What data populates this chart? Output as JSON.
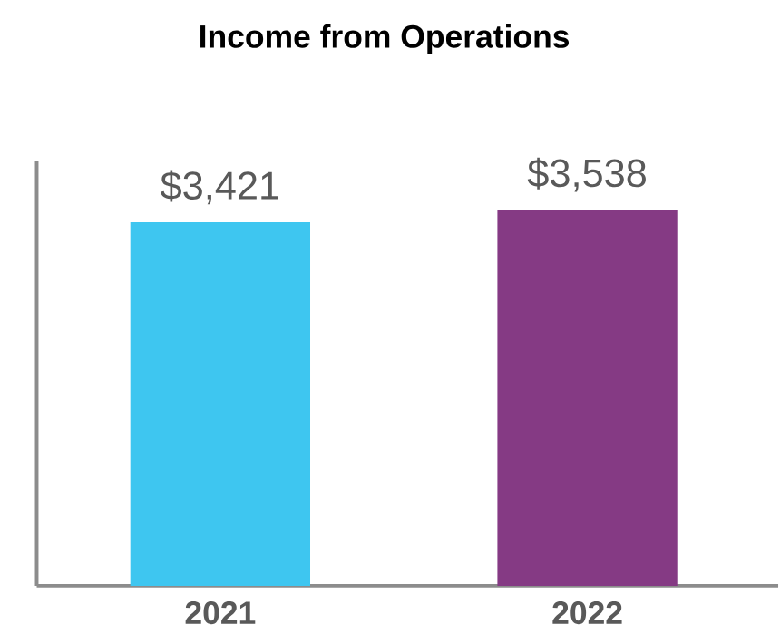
{
  "chart_data": {
    "type": "bar",
    "title": "Income from Operations",
    "categories": [
      "2021",
      "2022"
    ],
    "values": [
      3421,
      3538
    ],
    "colors": [
      "#3ec6f0",
      "#853a84"
    ],
    "value_labels": [
      "$3,421",
      "$3,538"
    ],
    "ylim": [
      0,
      4000
    ]
  }
}
